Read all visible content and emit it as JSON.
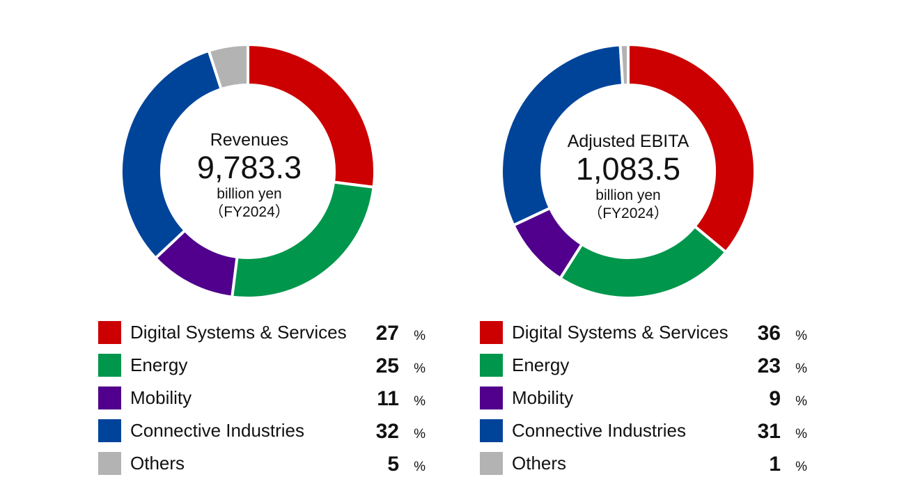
{
  "chart_data": [
    {
      "type": "pie",
      "variant": "donut",
      "title": "Revenues",
      "total_value": "9,783.3",
      "unit": "billion yen",
      "period": "（FY2024）",
      "pct_symbol": "%",
      "categories": [
        "Digital Systems & Services",
        "Energy",
        "Mobility",
        "Connective Industries",
        "Others"
      ],
      "values": [
        27,
        25,
        11,
        32,
        5
      ],
      "colors": [
        "#cc0000",
        "#00964b",
        "#50008c",
        "#00449a",
        "#b3b3b3"
      ],
      "legend_position": "bottom"
    },
    {
      "type": "pie",
      "variant": "donut",
      "title": "Adjusted EBITA",
      "total_value": "1,083.5",
      "unit": "billion yen",
      "period": "（FY2024）",
      "pct_symbol": "%",
      "categories": [
        "Digital Systems & Services",
        "Energy",
        "Mobility",
        "Connective Industries",
        "Others"
      ],
      "values": [
        36,
        23,
        9,
        31,
        1
      ],
      "colors": [
        "#cc0000",
        "#00964b",
        "#50008c",
        "#00449a",
        "#b3b3b3"
      ],
      "legend_position": "bottom"
    }
  ]
}
